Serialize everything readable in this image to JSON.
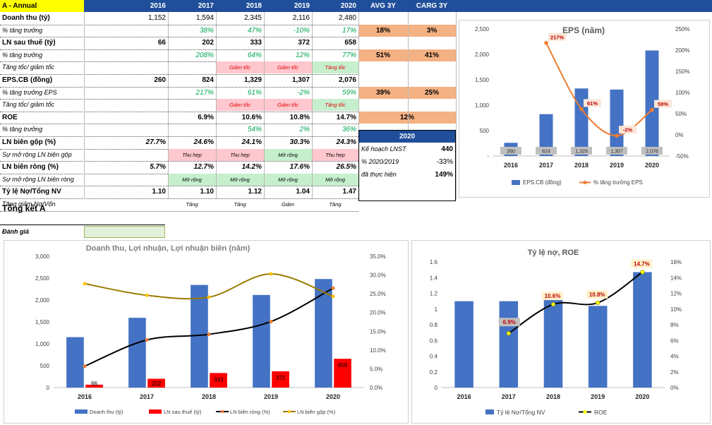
{
  "header": {
    "title": "A - Annual",
    "years": [
      "2016",
      "2017",
      "2018",
      "2019",
      "2020"
    ],
    "avg": "AVG 3Y",
    "carg": "CARG 3Y"
  },
  "rows": [
    {
      "label": "Doanh thu (tỷ)",
      "vals": [
        "1,152",
        "1,594",
        "2,345",
        "2,116",
        "2,480"
      ],
      "avg": "",
      "carg": ""
    },
    {
      "label": "% tăng trưởng",
      "vals": [
        "",
        "38%",
        "47%",
        "-10%",
        "17%"
      ],
      "avg": "18%",
      "carg": "3%"
    },
    {
      "label": "LN sau thuế (tỷ)",
      "vals": [
        "66",
        "202",
        "333",
        "372",
        "658"
      ],
      "avg": "",
      "carg": ""
    },
    {
      "label": "% tăng trưởng",
      "vals": [
        "",
        "208%",
        "64%",
        "12%",
        "77%"
      ],
      "avg": "51%",
      "carg": "41%"
    },
    {
      "label": "Tăng tốc/ giảm tốc",
      "vals": [
        "",
        "",
        "Giảm tốc",
        "Giảm tốc",
        "Tăng tốc"
      ],
      "avg": "",
      "carg": ""
    },
    {
      "label": "EPS.CB (đồng)",
      "vals": [
        "260",
        "824",
        "1,329",
        "1,307",
        "2,076"
      ],
      "avg": "",
      "carg": ""
    },
    {
      "label": "% tăng trưởng EPS",
      "vals": [
        "",
        "217%",
        "61%",
        "-2%",
        "59%"
      ],
      "avg": "39%",
      "carg": "25%"
    },
    {
      "label": "Tăng tốc/ giảm tốc",
      "vals": [
        "",
        "",
        "Giảm tốc",
        "Giảm tốc",
        "Tăng tốc"
      ],
      "avg": "",
      "carg": ""
    },
    {
      "label": "ROE",
      "vals": [
        "",
        "6.9%",
        "10.6%",
        "10.8%",
        "14.7%"
      ],
      "avg": "12%",
      "carg": ""
    },
    {
      "label": "% tăng trưởng",
      "vals": [
        "",
        "",
        "54%",
        "2%",
        "36%"
      ],
      "avg": "",
      "carg": ""
    },
    {
      "label": "LN biên gộp (%)",
      "vals": [
        "27.7%",
        "24.6%",
        "24.1%",
        "30.3%",
        "24.3%"
      ],
      "avg": "",
      "carg": ""
    },
    {
      "label": "Sự mở rộng LN biên gộp",
      "vals": [
        "",
        "Thu hẹp",
        "Thu hẹp",
        "Mở rộng",
        "Thu hẹp"
      ],
      "avg": "",
      "carg": ""
    },
    {
      "label": "LN biên ròng (%)",
      "vals": [
        "5.7%",
        "12.7%",
        "14.2%",
        "17.6%",
        "26.5%"
      ],
      "avg": "",
      "carg": ""
    },
    {
      "label": "Sự mở rộng LN biên ròng",
      "vals": [
        "",
        "Mở rộng",
        "Mở rộng",
        "Mở rộng",
        "Mở rộng"
      ],
      "avg": "",
      "carg": ""
    },
    {
      "label": "Tỷ lệ Nợ/Tổng NV",
      "vals": [
        "1.10",
        "1.10",
        "1.12",
        "1.04",
        "1.47"
      ],
      "avg": "",
      "carg": ""
    },
    {
      "label": "Tăng giảm Nợ/Vốn",
      "vals": [
        "",
        "Tăng",
        "Tăng",
        "Giảm",
        "Tăng"
      ],
      "avg": "",
      "carg": ""
    }
  ],
  "plan": {
    "year": "2020",
    "label1": "Kế hoạch LNST",
    "val1": "440",
    "label2": "% 2020/2019",
    "val2": "-33%",
    "label3": "đã thực hiện",
    "val3": "149%"
  },
  "summary": {
    "title": "Tổng kết A",
    "eval_label": "Đánh giá"
  },
  "colors": {
    "blue": "#4472c4",
    "red": "#ff0000",
    "orange": "#ed7d31",
    "black": "#000000",
    "olive": "#9c7a00",
    "yellow": "#ffff00",
    "header": "#1f4e9a"
  },
  "chart_data": [
    {
      "type": "bar",
      "title": "EPS  (năm)",
      "categories": [
        "2016",
        "2017",
        "2018",
        "2019",
        "2020"
      ],
      "series": [
        {
          "name": "EPS.CB (đồng)",
          "kind": "bar",
          "axis": "left",
          "values": [
            260,
            824,
            1329,
            1307,
            2076
          ],
          "labels": [
            "260",
            "824",
            "1,329",
            "1,307",
            "2,076"
          ]
        },
        {
          "name": "% tăng trưởng EPS",
          "kind": "line",
          "axis": "right",
          "values": [
            null,
            217,
            61,
            -2,
            59
          ],
          "labels": [
            "",
            "217%",
            "61%",
            "-2%",
            "59%"
          ]
        }
      ],
      "yleft": {
        "min": 0,
        "max": 2500,
        "ticks": [
          "-",
          "500",
          "1,000",
          "1,500",
          "2,000",
          "2,500"
        ]
      },
      "yright": {
        "min": -50,
        "max": 250,
        "ticks": [
          "-50%",
          "0%",
          "50%",
          "100%",
          "150%",
          "200%",
          "250%"
        ]
      }
    },
    {
      "type": "bar",
      "title": "Doanh thu, Lợi nhuận, Lợi nhuận biên (năm)",
      "categories": [
        "2016",
        "2017",
        "2018",
        "2019",
        "2020"
      ],
      "series": [
        {
          "name": "Doanh thu (tỷ)",
          "kind": "bar",
          "axis": "left",
          "values": [
            1152,
            1594,
            2345,
            2116,
            2480
          ]
        },
        {
          "name": "LN sau thuế (tỷ)",
          "kind": "bar",
          "axis": "left",
          "values": [
            66,
            202,
            333,
            372,
            658
          ],
          "labels": [
            "66",
            "202",
            "333",
            "372",
            "658"
          ]
        },
        {
          "name": "LN biên ròng (%)",
          "kind": "line",
          "axis": "right",
          "values": [
            5.7,
            12.7,
            14.2,
            17.6,
            26.5
          ]
        },
        {
          "name": "LN biên gộp (%)",
          "kind": "line",
          "axis": "right",
          "values": [
            27.7,
            24.6,
            24.1,
            30.3,
            24.3
          ]
        }
      ],
      "yleft": {
        "min": 0,
        "max": 3000,
        "ticks": [
          "0",
          "500",
          "1,000",
          "1,500",
          "2,000",
          "2,500",
          "3,000"
        ]
      },
      "yright": {
        "min": 0,
        "max": 35,
        "ticks": [
          "0.0%",
          "5.0%",
          "10.0%",
          "15.0%",
          "20.0%",
          "25.0%",
          "30.0%",
          "35.0%"
        ]
      }
    },
    {
      "type": "bar",
      "title": "Tỷ lệ nợ, ROE",
      "categories": [
        "2016",
        "2017",
        "2018",
        "2019",
        "2020"
      ],
      "series": [
        {
          "name": "Tỷ lệ Nợ/Tổng NV",
          "kind": "bar",
          "axis": "left",
          "values": [
            1.1,
            1.1,
            1.12,
            1.04,
            1.47
          ]
        },
        {
          "name": "ROE",
          "kind": "line",
          "axis": "right",
          "values": [
            null,
            6.9,
            10.6,
            10.8,
            14.7
          ],
          "labels": [
            "",
            "6.9%",
            "10.6%",
            "10.8%",
            "14.7%"
          ]
        }
      ],
      "yleft": {
        "min": 0,
        "max": 1.6,
        "ticks": [
          "0",
          "0.2",
          "0.4",
          "0.6",
          "0.8",
          "1",
          "1.2",
          "1.4",
          "1.6"
        ]
      },
      "yright": {
        "min": 0,
        "max": 16,
        "ticks": [
          "0%",
          "2%",
          "4%",
          "6%",
          "8%",
          "10%",
          "12%",
          "14%",
          "16%"
        ]
      }
    }
  ]
}
